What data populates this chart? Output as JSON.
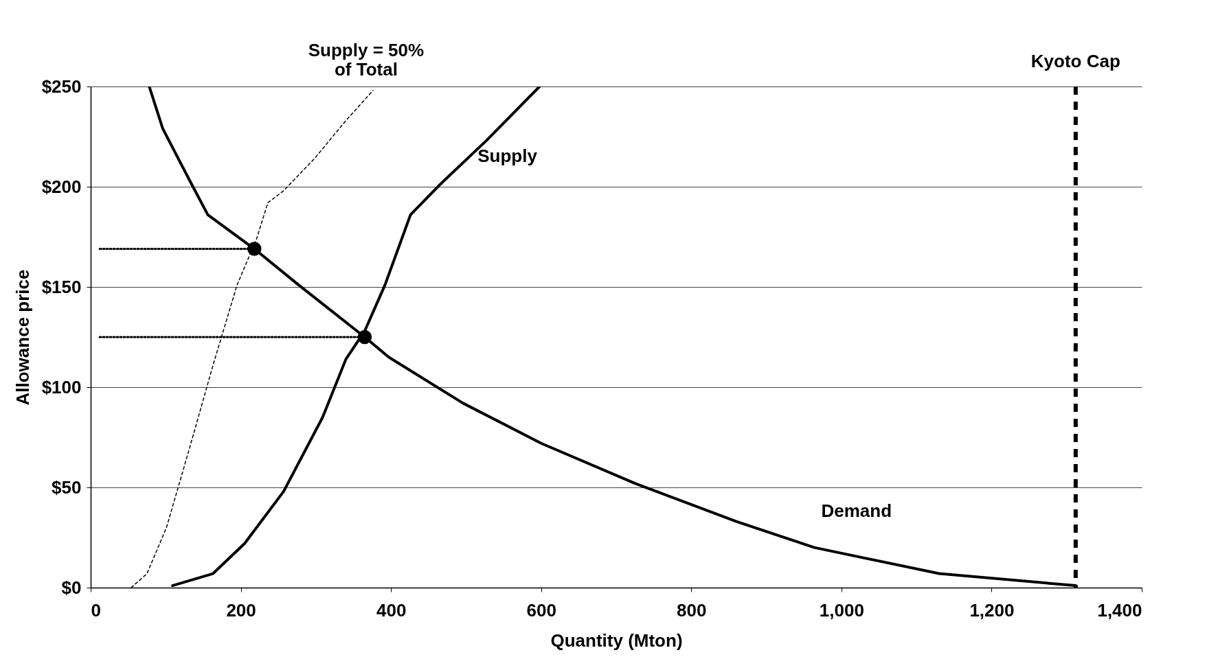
{
  "chart_data": {
    "type": "line",
    "xlabel": "Quantity (Mton)",
    "ylabel": "Allowance price",
    "xlim": [
      0,
      1400
    ],
    "ylim": [
      0,
      250
    ],
    "xticks": [
      0,
      200,
      400,
      600,
      800,
      {
        "value": 1000,
        "label": "1,000"
      },
      {
        "value": 1200,
        "label": "1,200"
      },
      {
        "value": 1400,
        "label": "1,400"
      }
    ],
    "yticks": [
      {
        "value": 0,
        "label": "$0"
      },
      {
        "value": 50,
        "label": "$50"
      },
      {
        "value": 100,
        "label": "$100"
      },
      {
        "value": 150,
        "label": "$150"
      },
      {
        "value": 200,
        "label": "$200"
      },
      {
        "value": 250,
        "label": "$250"
      }
    ],
    "grid": "y",
    "series": [
      {
        "name": "Demand",
        "color": "#000000",
        "line_style": "solid",
        "x": [
          78,
          96,
          132,
          156,
          218,
          277,
          365,
          397,
          496,
          600,
          725,
          860,
          964,
          1130,
          1312
        ],
        "values": [
          250,
          229,
          203,
          186,
          169,
          151,
          125,
          115,
          92,
          72,
          52,
          33,
          20,
          7,
          1
        ]
      },
      {
        "name": "Supply",
        "color": "#000000",
        "line_style": "solid",
        "x": [
          109,
          163,
          205,
          257,
          309,
          340,
          365,
          392,
          426,
          465,
          527,
          598
        ],
        "values": [
          1,
          7,
          22,
          48,
          85,
          114,
          128,
          151,
          186,
          201,
          223,
          250
        ]
      },
      {
        "name": "Supply = 50%\nof Total",
        "color": "#000000",
        "line_style": "dashed",
        "x": [
          54,
          75,
          101,
          132,
          163,
          195,
          221,
          236,
          257,
          298,
          340,
          376
        ],
        "values": [
          0,
          7,
          30,
          70,
          111,
          151,
          174,
          192,
          198,
          214,
          233,
          248
        ]
      },
      {
        "color": "#000000",
        "line_style": "dotted",
        "x": [
          12,
          218
        ],
        "values": [
          169,
          169
        ]
      },
      {
        "color": "#000000",
        "line_style": "dotted",
        "x": [
          12,
          365
        ],
        "values": [
          125,
          125
        ]
      },
      {
        "type": "scatter",
        "color": "#000000",
        "marker": "circle",
        "x": [
          218,
          365
        ],
        "values": [
          169,
          125
        ]
      }
    ],
    "ref_lines": [
      {
        "axis": "x",
        "value": 1312,
        "label": "Kyoto Cap",
        "line_style": "dashed",
        "color": "#000000"
      }
    ]
  }
}
